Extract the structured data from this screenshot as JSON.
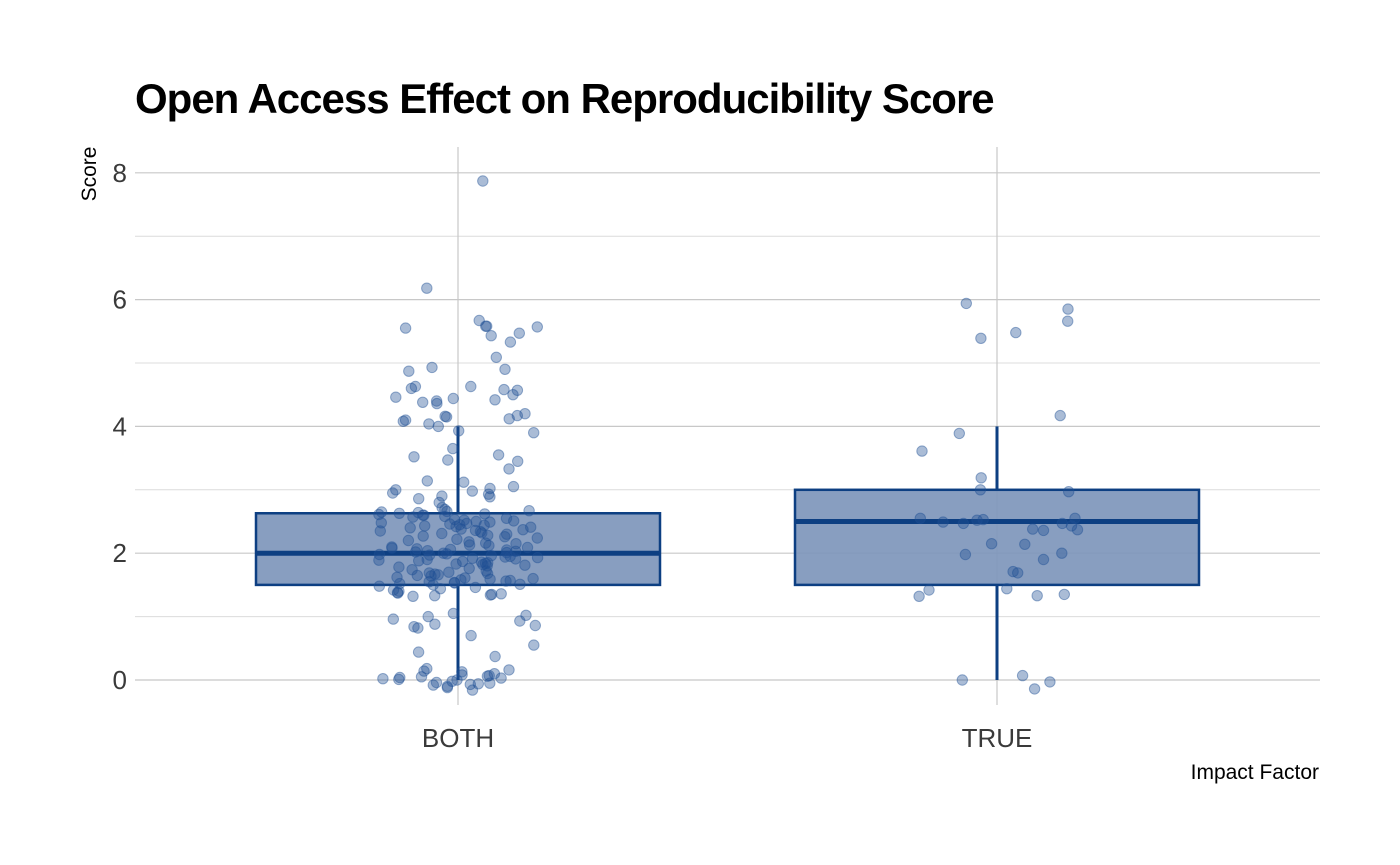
{
  "chart_data": {
    "type": "box",
    "title": "Open Access Effect on Reproducibility Score",
    "xlabel": "Impact Factor",
    "ylabel": "Score",
    "ylim": [
      -0.6,
      8.4
    ],
    "yticks": [
      0,
      2,
      4,
      6,
      8
    ],
    "grid": true,
    "colors": {
      "box_fill": "#7f97bb",
      "box_stroke": "#0d3f82",
      "point": "#1f4f94"
    },
    "categories": [
      "BOTH",
      "TRUE"
    ],
    "boxes": [
      {
        "category": "BOTH",
        "lower_whisker": 0,
        "q1": 1.5,
        "median": 2,
        "q3": 2.63,
        "upper_whisker": 4
      },
      {
        "category": "TRUE",
        "lower_whisker": 0,
        "q1": 1.5,
        "median": 2.5,
        "q3": 3,
        "upper_whisker": 4
      }
    ],
    "points": [
      {
        "category": "BOTH",
        "values": [
          7.87,
          6.18,
          5.67,
          5.57,
          5.58,
          5.58,
          5.55,
          5.47,
          5.43,
          5.33,
          5.09,
          4.93,
          4.9,
          4.87,
          4.63,
          4.63,
          4.6,
          4.58,
          4.57,
          4.5,
          4.46,
          4.44,
          4.42,
          4.4,
          4.38,
          4.36,
          4.2,
          4.17,
          4.16,
          4.15,
          4.12,
          4.1,
          4.08,
          4.04,
          4.0,
          3.93,
          3.9,
          3.65,
          3.55,
          3.52,
          3.47,
          3.45,
          3.33,
          3.14,
          3.12,
          3.05,
          3.02,
          3.0,
          2.98,
          2.95,
          2.93,
          2.9,
          2.89,
          2.86,
          2.8,
          2.72,
          2.69,
          2.67,
          2.66,
          2.65,
          2.64,
          2.63,
          2.62,
          2.61,
          2.6,
          2.6,
          2.58,
          2.57,
          2.55,
          2.53,
          2.52,
          2.51,
          2.5,
          2.49,
          2.48,
          2.47,
          2.46,
          2.45,
          2.44,
          2.43,
          2.42,
          2.41,
          2.4,
          2.38,
          2.37,
          2.36,
          2.35,
          2.34,
          2.32,
          2.31,
          2.3,
          2.28,
          2.27,
          2.26,
          2.24,
          2.22,
          2.2,
          2.18,
          2.16,
          2.15,
          2.13,
          2.12,
          2.1,
          2.09,
          2.08,
          2.07,
          2.06,
          2.05,
          2.04,
          2.03,
          2.02,
          2.01,
          2.0,
          1.99,
          1.98,
          1.97,
          1.96,
          1.95,
          1.94,
          1.93,
          1.92,
          1.91,
          1.9,
          1.89,
          1.88,
          1.87,
          1.86,
          1.85,
          1.84,
          1.83,
          1.82,
          1.81,
          1.8,
          1.78,
          1.76,
          1.74,
          1.72,
          1.7,
          1.69,
          1.68,
          1.67,
          1.66,
          1.65,
          1.64,
          1.62,
          1.61,
          1.6,
          1.59,
          1.58,
          1.57,
          1.56,
          1.55,
          1.54,
          1.53,
          1.52,
          1.51,
          1.5,
          1.48,
          1.46,
          1.44,
          1.42,
          1.4,
          1.38,
          1.37,
          1.36,
          1.35,
          1.34,
          1.33,
          1.32,
          1.05,
          1.02,
          1.0,
          0.96,
          0.93,
          0.88,
          0.86,
          0.84,
          0.82,
          0.7,
          0.55,
          0.44,
          0.37,
          0.18,
          0.16,
          0.14,
          0.13,
          0.1,
          0.08,
          0.07,
          0.06,
          0.05,
          0.04,
          0.03,
          0.02,
          0.01,
          0.0,
          -0.02,
          -0.04,
          -0.05,
          -0.06,
          -0.07,
          -0.08,
          -0.1,
          -0.12,
          -0.16
        ]
      },
      {
        "category": "TRUE",
        "values": [
          5.94,
          5.85,
          5.66,
          5.48,
          5.39,
          4.17,
          3.89,
          3.61,
          3.19,
          3.0,
          2.97,
          2.55,
          2.55,
          2.53,
          2.52,
          2.49,
          2.47,
          2.47,
          2.43,
          2.38,
          2.37,
          2.36,
          2.15,
          2.14,
          2.0,
          1.98,
          1.9,
          1.71,
          1.69,
          1.44,
          1.42,
          1.35,
          1.33,
          1.32,
          0.07,
          0.0,
          -0.03,
          -0.14
        ]
      }
    ]
  }
}
